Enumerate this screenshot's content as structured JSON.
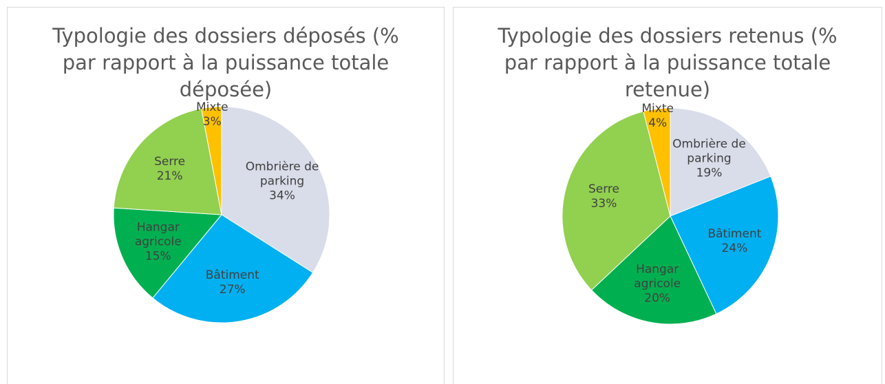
{
  "chart_data": [
    {
      "type": "pie",
      "title": "Typologie des dossiers déposés (% par rapport à la puissance totale déposée)",
      "categories": [
        "Ombrière de parking",
        "Bâtiment",
        "Hangar agricole",
        "Serre",
        "Mixte"
      ],
      "values": [
        34,
        27,
        15,
        21,
        3
      ],
      "value_labels": [
        "34%",
        "27%",
        "15%",
        "21%",
        "3%"
      ],
      "colors": [
        "#d9dce9",
        "#00b0f0",
        "#00b050",
        "#92d050",
        "#ffc000"
      ]
    },
    {
      "type": "pie",
      "title": "Typologie des dossiers retenus (% par rapport à la puissance totale retenue)",
      "categories": [
        "Ombrière de parking",
        "Bâtiment",
        "Hangar agricole",
        "Serre",
        "Mixte"
      ],
      "values": [
        19,
        24,
        20,
        33,
        4
      ],
      "value_labels": [
        "19%",
        "24%",
        "20%",
        "33%",
        "4%"
      ],
      "colors": [
        "#d9dce9",
        "#00b0f0",
        "#00b050",
        "#92d050",
        "#ffc000"
      ]
    }
  ]
}
